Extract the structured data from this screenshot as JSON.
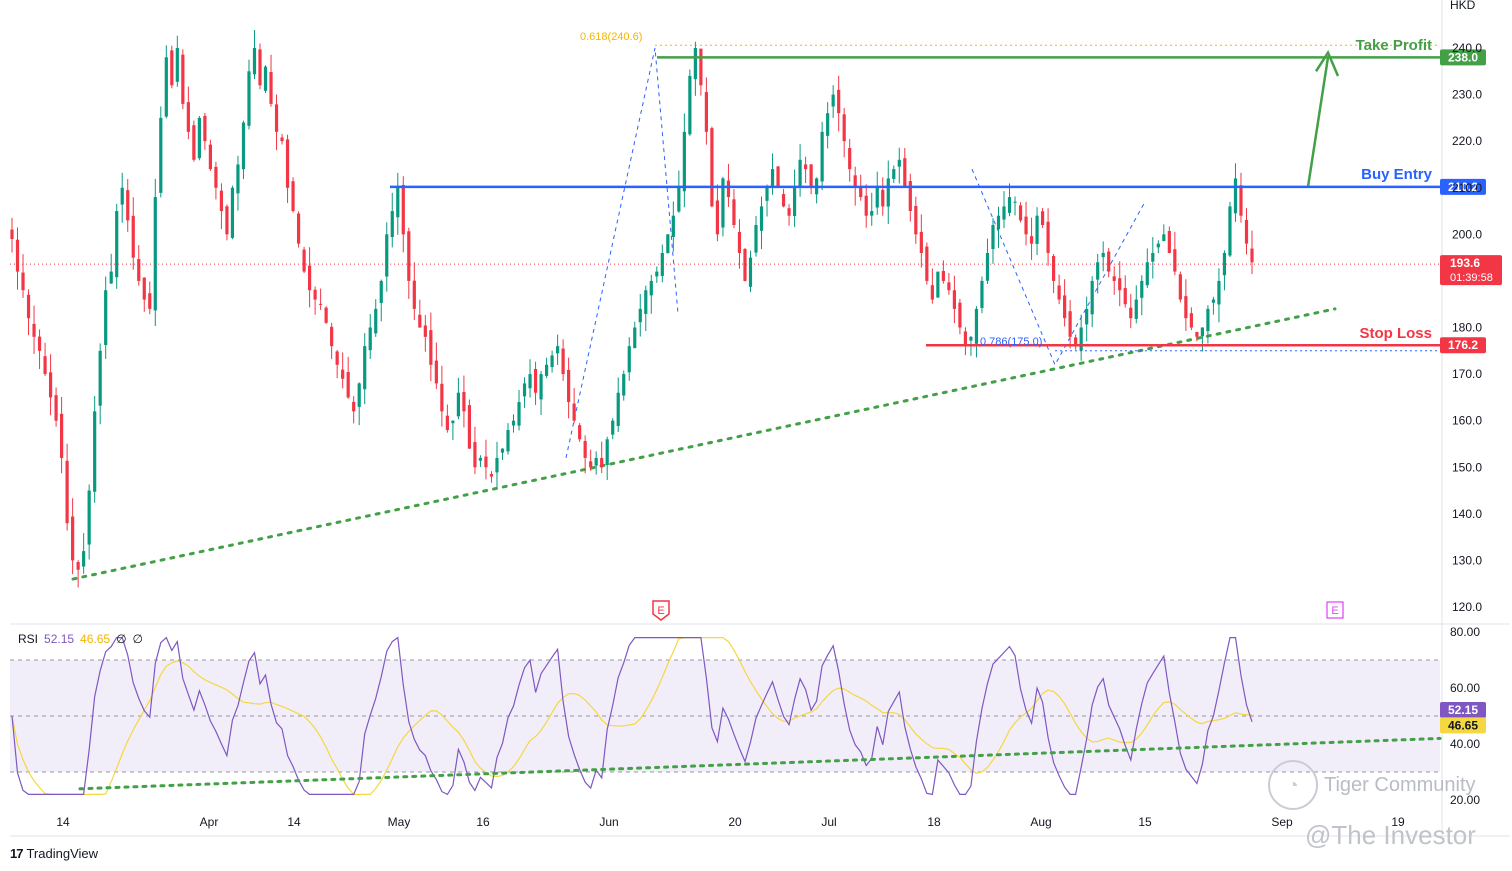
{
  "chart_data": [
    {
      "type": "candlestick",
      "currency": "HKD",
      "ylim": [
        118,
        243
      ],
      "y_ticks": [
        120,
        130,
        140,
        150,
        160,
        170,
        180,
        200,
        210,
        220,
        230,
        240
      ],
      "x_tick_labels": [
        "14",
        "Apr",
        "14",
        "May",
        "16",
        "Jun",
        "20",
        "Jul",
        "18",
        "Aug",
        "15",
        "Sep",
        "19"
      ],
      "price_levels": [
        {
          "label": "Take Profit",
          "value": 238.0,
          "tag": "238.0",
          "color": "#43a047"
        },
        {
          "label": "Buy Entry",
          "value": 210.2,
          "tag": "210.2",
          "color": "#2962ff"
        },
        {
          "label": "Stop Loss",
          "value": 176.2,
          "tag": "176.2",
          "color": "#f23645"
        }
      ],
      "fib_labels": [
        {
          "text": "0.618(240.6)",
          "value": 240.6,
          "color": "#f5b400"
        },
        {
          "text": "0.786(175.0)",
          "value": 175.0,
          "color": "#2962ff"
        }
      ],
      "last_price": {
        "value": 193.6,
        "tag": "193.6",
        "countdown": "01:39:58",
        "color": "#f23645"
      },
      "earnings_markers": [
        "E",
        "E"
      ],
      "candles_close": [
        199,
        192,
        188,
        182,
        178,
        175,
        170,
        165,
        160,
        152,
        138,
        130,
        128,
        132,
        145,
        162,
        175,
        188,
        192,
        205,
        210,
        203,
        195,
        190,
        186,
        184,
        208,
        225,
        238,
        232,
        240,
        228,
        222,
        216,
        225,
        220,
        214,
        210,
        205,
        200,
        210,
        215,
        224,
        235,
        240,
        232,
        236,
        228,
        222,
        220,
        210,
        205,
        198,
        192,
        188,
        186,
        185,
        181,
        176,
        172,
        169,
        165,
        162,
        168,
        176,
        180,
        184,
        190,
        200,
        205,
        210,
        200,
        190,
        184,
        180,
        178,
        172,
        168,
        162,
        158,
        160,
        166,
        162,
        154,
        150,
        152,
        150,
        148,
        152,
        154,
        158,
        160,
        164,
        168,
        170,
        166,
        170,
        172,
        174,
        176,
        170,
        164,
        160,
        156,
        152,
        150,
        152,
        150,
        156,
        160,
        166,
        170,
        176,
        180,
        184,
        188,
        190,
        192,
        196,
        200,
        204,
        210,
        222,
        234,
        240,
        232,
        222,
        206,
        200,
        212,
        208,
        202,
        196,
        190,
        195,
        202,
        206,
        210,
        214,
        210,
        206,
        204,
        210,
        216,
        214,
        210,
        212,
        222,
        226,
        230,
        226,
        220,
        214,
        210,
        208,
        204,
        205,
        210,
        206,
        212,
        214,
        216,
        210,
        205,
        200,
        196,
        190,
        186,
        192,
        190,
        188,
        184,
        180,
        176,
        178,
        184,
        190,
        196,
        202,
        204,
        206,
        208,
        207,
        203,
        200,
        198,
        204,
        202,
        196,
        190,
        186,
        182,
        178,
        176,
        180,
        184,
        190,
        194,
        196,
        192,
        190,
        188,
        185,
        182,
        186,
        190,
        194,
        196,
        198,
        200,
        196,
        192,
        186,
        182,
        180,
        178,
        180,
        184,
        186,
        190,
        196,
        206,
        212,
        204,
        198,
        194
      ],
      "series": [
        {
          "name": "RSI",
          "value": 52.15,
          "tag": "52.15",
          "color": "#7e57c2"
        },
        {
          "name": "RSI-based MA",
          "value": 46.65,
          "tag": "46.65",
          "color": "#f5d742"
        }
      ],
      "rsi_legend": {
        "name": "RSI",
        "v1": "52.15",
        "v2": "46.65",
        "v3": "∅",
        "v4": "∅"
      },
      "rsi_ylim": [
        15,
        82
      ],
      "rsi_ticks": [
        "80.00",
        "60.00",
        "40.00",
        "20.00"
      ]
    }
  ],
  "footer": {
    "brand": "TradingView",
    "logo_glyph": "17"
  },
  "watermarks": {
    "community": "Tiger Community",
    "author": "@The Investor"
  },
  "colors": {
    "bull": "#089981",
    "bear": "#f23645",
    "trend": "#43a047",
    "grid": "#e0e3eb"
  }
}
